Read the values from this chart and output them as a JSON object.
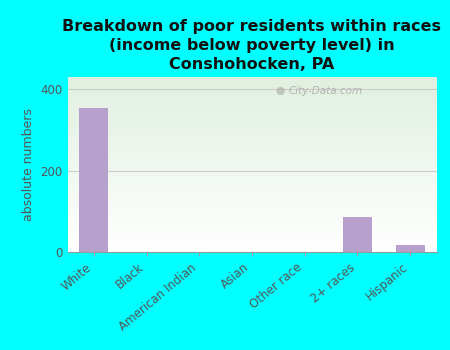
{
  "title": "Breakdown of poor residents within races\n(income below poverty level) in\nConshohocken, PA",
  "ylabel": "absolute numbers",
  "categories": [
    "White",
    "Black",
    "American Indian",
    "Asian",
    "Other race",
    "2+ races",
    "Hispanic"
  ],
  "values": [
    355,
    0,
    0,
    0,
    0,
    85,
    18
  ],
  "bar_color": "#b8a0cc",
  "ylim": [
    0,
    430
  ],
  "yticks": [
    0,
    200,
    400
  ],
  "background_color": "#00ffff",
  "watermark": "City-Data.com",
  "title_fontsize": 11.5,
  "ylabel_fontsize": 9,
  "tick_fontsize": 8.5
}
